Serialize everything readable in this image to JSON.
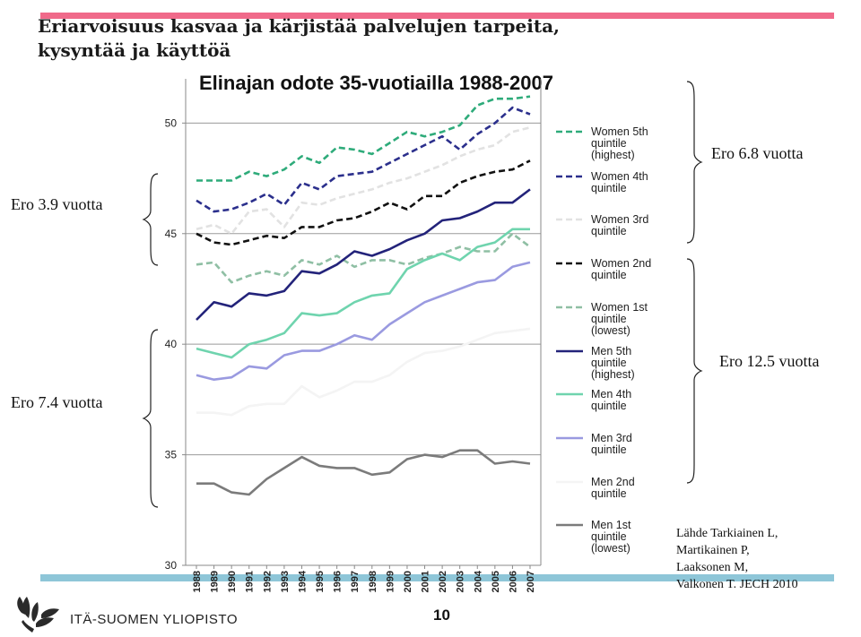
{
  "slide": {
    "title_line1": "Eriarvoisuus kasvaa ja kärjistää palvelujen tarpeita,",
    "title_line2": "kysyntää ja käyttöä",
    "page_number": "10",
    "university": "ITÄ-SUOMEN YLIOPISTO",
    "accent_top": "#f06a8a",
    "accent_bottom": "#8ec6d8"
  },
  "annotations": {
    "women_top": "Ero 6.8 vuotta",
    "women_bottom": "Ero 3.9 vuotta",
    "men_top": "Ero 12.5 vuotta",
    "men_bottom": "Ero  7.4 vuotta"
  },
  "source": {
    "line1": "Lähde Tarkiainen L,",
    "line2": "Martikainen P,",
    "line3": "Laaksonen M,",
    "line4": "Valkonen T. JECH 2010"
  },
  "chart_data": {
    "type": "line",
    "title": "Elinajan odote 35-vuotiailla 1988-2007",
    "xlabel": "",
    "ylabel": "",
    "ylim": [
      30,
      52
    ],
    "yticks": [
      30,
      35,
      40,
      45,
      50
    ],
    "x": [
      "1988",
      "1989",
      "1990",
      "1991",
      "1992",
      "1993",
      "1994",
      "1995",
      "1996",
      "1997",
      "1998",
      "1999",
      "2000",
      "2001",
      "2002",
      "2003",
      "2004",
      "2005",
      "2006",
      "2007"
    ],
    "grid": true,
    "legend_position": "right",
    "series": [
      {
        "name": "Women 5th quintile (highest)",
        "color": "#2eab7a",
        "dash": true,
        "values": [
          47.4,
          47.4,
          47.4,
          47.8,
          47.6,
          47.9,
          48.5,
          48.2,
          48.9,
          48.8,
          48.6,
          49.1,
          49.6,
          49.4,
          49.6,
          49.9,
          50.8,
          51.1,
          51.1,
          51.2
        ]
      },
      {
        "name": "Women 4th quintile",
        "color": "#2b2f8c",
        "dash": true,
        "values": [
          46.5,
          46.0,
          46.1,
          46.4,
          46.8,
          46.3,
          47.3,
          47.0,
          47.6,
          47.7,
          47.8,
          48.2,
          48.6,
          49.0,
          49.4,
          48.8,
          49.5,
          50.0,
          50.7,
          50.4
        ]
      },
      {
        "name": "Women 3rd quintile",
        "color": "#e2e2e2",
        "dash": true,
        "values": [
          45.2,
          45.4,
          45.0,
          46.0,
          46.1,
          45.3,
          46.4,
          46.3,
          46.6,
          46.8,
          47.0,
          47.3,
          47.5,
          47.8,
          48.1,
          48.5,
          48.8,
          49.0,
          49.6,
          49.8
        ]
      },
      {
        "name": "Women 2nd quintile",
        "color": "#111111",
        "dash": true,
        "values": [
          45.0,
          44.6,
          44.5,
          44.7,
          44.9,
          44.8,
          45.3,
          45.3,
          45.6,
          45.7,
          46.0,
          46.4,
          46.1,
          46.7,
          46.7,
          47.3,
          47.6,
          47.8,
          47.9,
          48.3
        ]
      },
      {
        "name": "Women 1st quintile (lowest)",
        "color": "#8fbfa4",
        "dash": true,
        "values": [
          43.6,
          43.7,
          42.8,
          43.1,
          43.3,
          43.1,
          43.8,
          43.6,
          44.0,
          43.5,
          43.8,
          43.8,
          43.6,
          43.9,
          44.1,
          44.4,
          44.2,
          44.2,
          45.0,
          44.4
        ]
      },
      {
        "name": "Men 5th quintile (highest)",
        "color": "#23237a",
        "dash": false,
        "values": [
          41.1,
          41.9,
          41.7,
          42.3,
          42.2,
          42.4,
          43.3,
          43.2,
          43.6,
          44.2,
          44.0,
          44.3,
          44.7,
          45.0,
          45.6,
          45.7,
          46.0,
          46.4,
          46.4,
          47.0
        ]
      },
      {
        "name": "Men 4th quintile",
        "color": "#6fd4ae",
        "dash": false,
        "values": [
          39.8,
          39.6,
          39.4,
          40.0,
          40.2,
          40.5,
          41.4,
          41.3,
          41.4,
          41.9,
          42.2,
          42.3,
          43.4,
          43.8,
          44.1,
          43.8,
          44.4,
          44.6,
          45.2,
          45.2
        ]
      },
      {
        "name": "Men 3rd quintile",
        "color": "#9a9ae0",
        "dash": false,
        "values": [
          38.6,
          38.4,
          38.5,
          39.0,
          38.9,
          39.5,
          39.7,
          39.7,
          40.0,
          40.4,
          40.2,
          40.9,
          41.4,
          41.9,
          42.2,
          42.5,
          42.8,
          42.9,
          43.5,
          43.7
        ]
      },
      {
        "name": "Men 2nd quintile",
        "color": "#f4f4f4",
        "dash": false,
        "values": [
          36.9,
          36.9,
          36.8,
          37.2,
          37.3,
          37.3,
          38.1,
          37.6,
          37.9,
          38.3,
          38.3,
          38.6,
          39.2,
          39.6,
          39.7,
          39.9,
          40.2,
          40.5,
          40.6,
          40.7
        ]
      },
      {
        "name": "Men 1st quintile (lowest)",
        "color": "#7b7b7b",
        "dash": false,
        "values": [
          33.7,
          33.7,
          33.3,
          33.2,
          33.9,
          34.4,
          34.9,
          34.5,
          34.4,
          34.4,
          34.1,
          34.2,
          34.8,
          35.0,
          34.9,
          35.2,
          35.2,
          34.6,
          34.7,
          34.6
        ]
      }
    ]
  }
}
